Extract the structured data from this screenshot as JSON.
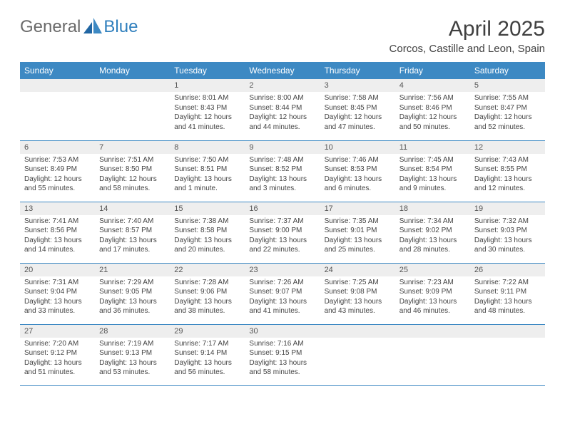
{
  "colors": {
    "header_bg": "#3d89c3",
    "header_text": "#ffffff",
    "daynum_bg": "#eeeeee",
    "daynum_text": "#555555",
    "body_text": "#444444",
    "rule": "#3d89c3",
    "logo_general": "#6a6a6a",
    "logo_blue": "#2f7fbd",
    "title_text": "#404040"
  },
  "logo": {
    "part1": "General",
    "part2": "Blue"
  },
  "title": "April 2025",
  "location": "Corcos, Castille and Leon, Spain",
  "weekdays": [
    "Sunday",
    "Monday",
    "Tuesday",
    "Wednesday",
    "Thursday",
    "Friday",
    "Saturday"
  ],
  "weeks": [
    [
      null,
      null,
      {
        "n": "1",
        "sr": "Sunrise: 8:01 AM",
        "ss": "Sunset: 8:43 PM",
        "dl": "Daylight: 12 hours and 41 minutes."
      },
      {
        "n": "2",
        "sr": "Sunrise: 8:00 AM",
        "ss": "Sunset: 8:44 PM",
        "dl": "Daylight: 12 hours and 44 minutes."
      },
      {
        "n": "3",
        "sr": "Sunrise: 7:58 AM",
        "ss": "Sunset: 8:45 PM",
        "dl": "Daylight: 12 hours and 47 minutes."
      },
      {
        "n": "4",
        "sr": "Sunrise: 7:56 AM",
        "ss": "Sunset: 8:46 PM",
        "dl": "Daylight: 12 hours and 50 minutes."
      },
      {
        "n": "5",
        "sr": "Sunrise: 7:55 AM",
        "ss": "Sunset: 8:47 PM",
        "dl": "Daylight: 12 hours and 52 minutes."
      }
    ],
    [
      {
        "n": "6",
        "sr": "Sunrise: 7:53 AM",
        "ss": "Sunset: 8:49 PM",
        "dl": "Daylight: 12 hours and 55 minutes."
      },
      {
        "n": "7",
        "sr": "Sunrise: 7:51 AM",
        "ss": "Sunset: 8:50 PM",
        "dl": "Daylight: 12 hours and 58 minutes."
      },
      {
        "n": "8",
        "sr": "Sunrise: 7:50 AM",
        "ss": "Sunset: 8:51 PM",
        "dl": "Daylight: 13 hours and 1 minute."
      },
      {
        "n": "9",
        "sr": "Sunrise: 7:48 AM",
        "ss": "Sunset: 8:52 PM",
        "dl": "Daylight: 13 hours and 3 minutes."
      },
      {
        "n": "10",
        "sr": "Sunrise: 7:46 AM",
        "ss": "Sunset: 8:53 PM",
        "dl": "Daylight: 13 hours and 6 minutes."
      },
      {
        "n": "11",
        "sr": "Sunrise: 7:45 AM",
        "ss": "Sunset: 8:54 PM",
        "dl": "Daylight: 13 hours and 9 minutes."
      },
      {
        "n": "12",
        "sr": "Sunrise: 7:43 AM",
        "ss": "Sunset: 8:55 PM",
        "dl": "Daylight: 13 hours and 12 minutes."
      }
    ],
    [
      {
        "n": "13",
        "sr": "Sunrise: 7:41 AM",
        "ss": "Sunset: 8:56 PM",
        "dl": "Daylight: 13 hours and 14 minutes."
      },
      {
        "n": "14",
        "sr": "Sunrise: 7:40 AM",
        "ss": "Sunset: 8:57 PM",
        "dl": "Daylight: 13 hours and 17 minutes."
      },
      {
        "n": "15",
        "sr": "Sunrise: 7:38 AM",
        "ss": "Sunset: 8:58 PM",
        "dl": "Daylight: 13 hours and 20 minutes."
      },
      {
        "n": "16",
        "sr": "Sunrise: 7:37 AM",
        "ss": "Sunset: 9:00 PM",
        "dl": "Daylight: 13 hours and 22 minutes."
      },
      {
        "n": "17",
        "sr": "Sunrise: 7:35 AM",
        "ss": "Sunset: 9:01 PM",
        "dl": "Daylight: 13 hours and 25 minutes."
      },
      {
        "n": "18",
        "sr": "Sunrise: 7:34 AM",
        "ss": "Sunset: 9:02 PM",
        "dl": "Daylight: 13 hours and 28 minutes."
      },
      {
        "n": "19",
        "sr": "Sunrise: 7:32 AM",
        "ss": "Sunset: 9:03 PM",
        "dl": "Daylight: 13 hours and 30 minutes."
      }
    ],
    [
      {
        "n": "20",
        "sr": "Sunrise: 7:31 AM",
        "ss": "Sunset: 9:04 PM",
        "dl": "Daylight: 13 hours and 33 minutes."
      },
      {
        "n": "21",
        "sr": "Sunrise: 7:29 AM",
        "ss": "Sunset: 9:05 PM",
        "dl": "Daylight: 13 hours and 36 minutes."
      },
      {
        "n": "22",
        "sr": "Sunrise: 7:28 AM",
        "ss": "Sunset: 9:06 PM",
        "dl": "Daylight: 13 hours and 38 minutes."
      },
      {
        "n": "23",
        "sr": "Sunrise: 7:26 AM",
        "ss": "Sunset: 9:07 PM",
        "dl": "Daylight: 13 hours and 41 minutes."
      },
      {
        "n": "24",
        "sr": "Sunrise: 7:25 AM",
        "ss": "Sunset: 9:08 PM",
        "dl": "Daylight: 13 hours and 43 minutes."
      },
      {
        "n": "25",
        "sr": "Sunrise: 7:23 AM",
        "ss": "Sunset: 9:09 PM",
        "dl": "Daylight: 13 hours and 46 minutes."
      },
      {
        "n": "26",
        "sr": "Sunrise: 7:22 AM",
        "ss": "Sunset: 9:11 PM",
        "dl": "Daylight: 13 hours and 48 minutes."
      }
    ],
    [
      {
        "n": "27",
        "sr": "Sunrise: 7:20 AM",
        "ss": "Sunset: 9:12 PM",
        "dl": "Daylight: 13 hours and 51 minutes."
      },
      {
        "n": "28",
        "sr": "Sunrise: 7:19 AM",
        "ss": "Sunset: 9:13 PM",
        "dl": "Daylight: 13 hours and 53 minutes."
      },
      {
        "n": "29",
        "sr": "Sunrise: 7:17 AM",
        "ss": "Sunset: 9:14 PM",
        "dl": "Daylight: 13 hours and 56 minutes."
      },
      {
        "n": "30",
        "sr": "Sunrise: 7:16 AM",
        "ss": "Sunset: 9:15 PM",
        "dl": "Daylight: 13 hours and 58 minutes."
      },
      null,
      null,
      null
    ]
  ]
}
